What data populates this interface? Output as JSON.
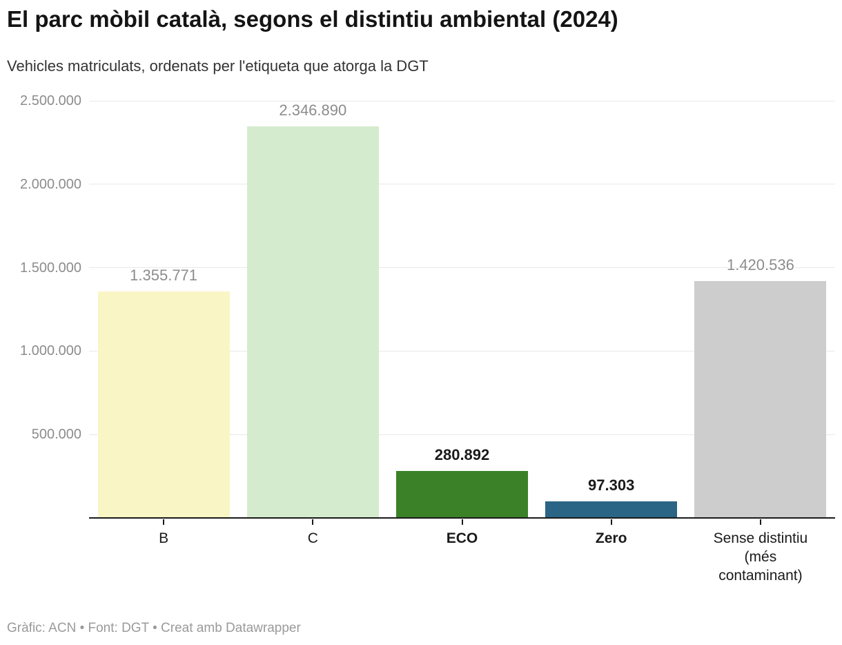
{
  "header": {
    "title": "El parc mòbil català, segons el distintiu ambiental (2024)",
    "subtitle": "Vehicles matriculats, ordenats per l'etiqueta que atorga la DGT"
  },
  "footer": {
    "text": "Gràfic: ACN • Font: DGT • Creat amb Datawrapper"
  },
  "chart_data": {
    "type": "bar",
    "title": "El parc mòbil català, segons el distintiu ambiental (2024)",
    "subtitle": "Vehicles matriculats, ordenats per l'etiqueta que atorga la DGT",
    "categories": [
      "B",
      "C",
      "ECO",
      "Zero",
      "Sense distintiu (més contaminant)"
    ],
    "category_label_lines": [
      [
        "B"
      ],
      [
        "C"
      ],
      [
        "ECO"
      ],
      [
        "Zero"
      ],
      [
        "Sense distintiu",
        "(més",
        "contaminant)"
      ]
    ],
    "values": [
      1355771,
      2346890,
      280892,
      97303,
      1420536
    ],
    "value_labels": [
      "1.355.771",
      "2.346.890",
      "280.892",
      "97.303",
      "1.420.536"
    ],
    "bar_colors": [
      "#faf5c5",
      "#d5ebcd",
      "#3b8128",
      "#2a6585",
      "#cdcdcd"
    ],
    "emphasized": [
      false,
      false,
      true,
      true,
      false
    ],
    "xlabel": "",
    "ylabel": "",
    "ylim": [
      0,
      2500000
    ],
    "yticks": [
      {
        "value": 500000,
        "label": "500.000"
      },
      {
        "value": 1000000,
        "label": "1.000.000"
      },
      {
        "value": 1500000,
        "label": "1.500.000"
      },
      {
        "value": 2000000,
        "label": "2.000.000"
      },
      {
        "value": 2500000,
        "label": "2.500.000"
      }
    ],
    "grid": true,
    "legend_position": "none"
  },
  "colors": {
    "background": "#ffffff",
    "grid": "#e8e8e8",
    "axis": "#1a1a1a",
    "muted_label": "#8c8c8c",
    "strong_label": "#1a1a1a",
    "title": "#141414",
    "subtitle": "#333333",
    "footer": "#9a9a9a"
  }
}
